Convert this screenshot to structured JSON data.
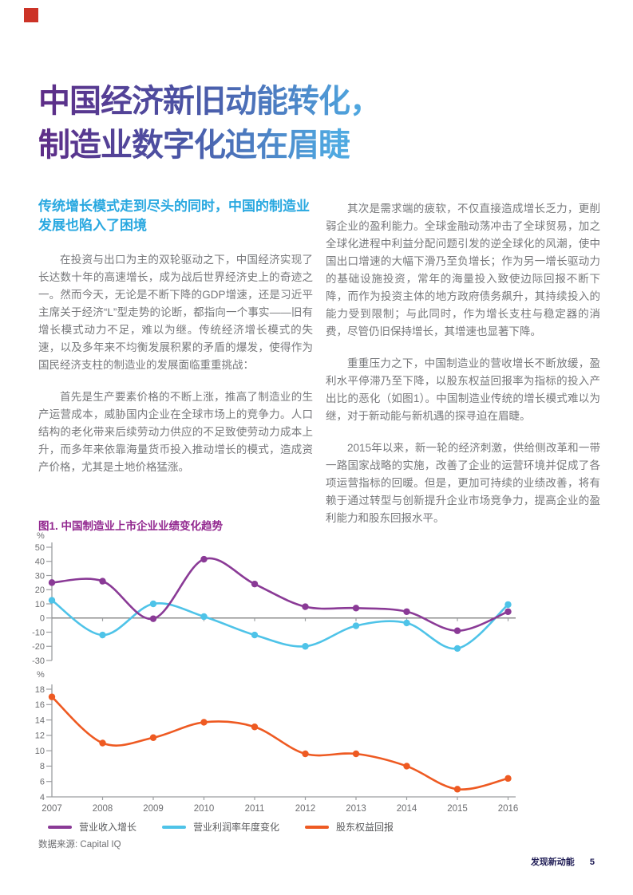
{
  "header": {
    "title_line1": "中国经济新旧动能转化，",
    "title_line2": "制造业数字化迫在眉睫"
  },
  "left_column": {
    "subheading": "传统增长模式走到尽头的同时，中国的制造业发展也陷入了困境",
    "paragraphs": [
      "在投资与出口为主的双轮驱动之下，中国经济实现了长达数十年的高速增长，成为战后世界经济史上的奇迹之一。然而今天，无论是不断下降的GDP增速，还是习近平主席关于经济“L”型走势的论断，都指向一个事实——旧有增长模式动力不足，难以为继。传统经济增长模式的失速，以及多年来不均衡发展积累的矛盾的爆发，使得作为国民经济支柱的制造业的发展面临重重挑战：",
      "首先是生产要素价格的不断上涨，推高了制造业的生产运营成本，威胁国内企业在全球市场上的竞争力。人口结构的老化带来后续劳动力供应的不足致使劳动力成本上升，而多年来依靠海量货币投入推动增长的模式，造成资产价格，尤其是土地价格猛涨。"
    ]
  },
  "right_column": {
    "paragraphs": [
      "其次是需求端的疲软，不仅直接造成增长乏力，更削弱企业的盈利能力。全球金融动荡冲击了全球贸易，加之全球化进程中利益分配问题引发的逆全球化的风潮，使中国出口增速的大幅下滑乃至负增长；作为另一增长驱动力的基础设施投资，常年的海量投入致使边际回报不断下降，而作为投资主体的地方政府债务飙升，其持续投入的能力受到限制；与此同时，作为增长支柱与稳定器的消费，尽管仍旧保持增长，其增速也显著下降。",
      "重重压力之下，中国制造业的营收增长不断放缓，盈利水平停滞乃至下降，以股东权益回报率为指标的投入产出比的恶化（如图1）。中国制造业传统的增长模式难以为继，对于新动能与新机遇的探寻迫在眉睫。",
      "2015年以来，新一轮的经济刺激，供给侧改革和一带一路国家战略的实施，改善了企业的运营环境并促成了各项运营指标的回暖。但是，更加可持续的业绩改善，将有赖于通过转型与创新提升企业市场竞争力，提高企业的盈利能力和股东回报水平。"
    ]
  },
  "chart": {
    "title": "图1. 中国制造业上市企业业绩变化趋势",
    "source": "数据来源: Capital IQ",
    "legend": [
      {
        "label": "营业收入增长",
        "color": "#8A3A96"
      },
      {
        "label": "营业利润率年度变化",
        "color": "#4EC3E8"
      },
      {
        "label": "股东权益回报",
        "color": "#EE5A22"
      }
    ]
  },
  "chart_data": [
    {
      "type": "line",
      "x": [
        2007,
        2008,
        2009,
        2010,
        2011,
        2012,
        2013,
        2014,
        2015,
        2016
      ],
      "series": [
        {
          "name": "营业收入增长",
          "color": "#8A3A96",
          "values": [
            25,
            26,
            -0.5,
            41.5,
            24,
            8,
            7,
            4.5,
            -9,
            4.5
          ]
        },
        {
          "name": "营业利润率年度变化",
          "color": "#4EC3E8",
          "values": [
            12.5,
            -12,
            10,
            1,
            -12,
            -20,
            -5.5,
            -3.5,
            -21.5,
            9.5
          ]
        }
      ],
      "ylabel": "%",
      "ylim": [
        -30,
        50
      ],
      "ytick_step": 10,
      "show_x_labels": false,
      "zero_line": true,
      "grid": false
    },
    {
      "type": "line",
      "x": [
        2007,
        2008,
        2009,
        2010,
        2011,
        2012,
        2013,
        2014,
        2015,
        2016
      ],
      "series": [
        {
          "name": "股东权益回报",
          "color": "#EE5A22",
          "values": [
            17,
            11,
            11.7,
            13.7,
            13.1,
            9.6,
            9.6,
            8,
            5,
            6.4
          ]
        }
      ],
      "ylabel": "%",
      "ylim": [
        4,
        18
      ],
      "ytick_step": 2,
      "show_x_labels": true,
      "zero_line": false,
      "grid": false
    }
  ],
  "footer": {
    "section_label": "发现新动能",
    "page_number": "5"
  },
  "colors": {
    "accent_red": "#CC3327",
    "title_gradient_start": "#5E2C87",
    "title_gradient_end": "#4FA9E1",
    "subheading_blue": "#29A8E0",
    "chart_title_purple": "#92278F",
    "body_grey": "#77787B",
    "axis_grey": "#9C9EA1",
    "footer_navy": "#232058"
  }
}
